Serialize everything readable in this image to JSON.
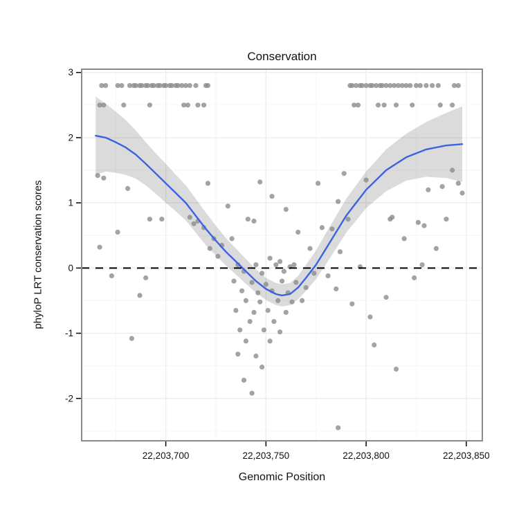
{
  "chart_data": {
    "type": "scatter",
    "title": "Conservation",
    "xlabel": "Genomic Position",
    "ylabel": "phyloP LRT conservation scores",
    "xlim": [
      22203658,
      22203858
    ],
    "ylim": [
      -2.65,
      3.05
    ],
    "x_ticks": [
      {
        "value": 22203700,
        "label": "22,203,700"
      },
      {
        "value": 22203750,
        "label": "22,203,750"
      },
      {
        "value": 22203800,
        "label": "22,203,800"
      },
      {
        "value": 22203850,
        "label": "22,203,850"
      }
    ],
    "x_minor": [
      22203675,
      22203725,
      22203775,
      22203825
    ],
    "y_ticks": [
      {
        "value": -2,
        "label": "-2"
      },
      {
        "value": -1,
        "label": "-1"
      },
      {
        "value": 0,
        "label": "0"
      },
      {
        "value": 1,
        "label": "1"
      },
      {
        "value": 2,
        "label": "2"
      },
      {
        "value": 3,
        "label": "3"
      }
    ],
    "y_minor": [
      -2.5,
      -1.5,
      -0.5,
      0.5,
      1.5,
      2.5
    ],
    "hline": 0,
    "legend": "none",
    "grid": "on",
    "points": [
      [
        22203668,
        2.8
      ],
      [
        22203670,
        2.8
      ],
      [
        22203676,
        2.8
      ],
      [
        22203678,
        2.8
      ],
      [
        22203682,
        2.8
      ],
      [
        22203684,
        2.8
      ],
      [
        22203685,
        2.8
      ],
      [
        22203687,
        2.8
      ],
      [
        22203688,
        2.8
      ],
      [
        22203690,
        2.8
      ],
      [
        22203691,
        2.8
      ],
      [
        22203693,
        2.8
      ],
      [
        22203694,
        2.8
      ],
      [
        22203696,
        2.8
      ],
      [
        22203697,
        2.8
      ],
      [
        22203699,
        2.8
      ],
      [
        22203700,
        2.8
      ],
      [
        22203702,
        2.8
      ],
      [
        22203703,
        2.8
      ],
      [
        22203705,
        2.8
      ],
      [
        22203706,
        2.8
      ],
      [
        22203708,
        2.8
      ],
      [
        22203710,
        2.8
      ],
      [
        22203712,
        2.8
      ],
      [
        22203715,
        2.8
      ],
      [
        22203720,
        2.8
      ],
      [
        22203721,
        2.8
      ],
      [
        22203792,
        2.8
      ],
      [
        22203793,
        2.8
      ],
      [
        22203795,
        2.8
      ],
      [
        22203797,
        2.8
      ],
      [
        22203798,
        2.8
      ],
      [
        22203800,
        2.8
      ],
      [
        22203802,
        2.8
      ],
      [
        22203803,
        2.8
      ],
      [
        22203805,
        2.8
      ],
      [
        22203807,
        2.8
      ],
      [
        22203808,
        2.8
      ],
      [
        22203810,
        2.8
      ],
      [
        22203812,
        2.8
      ],
      [
        22203814,
        2.8
      ],
      [
        22203816,
        2.8
      ],
      [
        22203818,
        2.8
      ],
      [
        22203820,
        2.8
      ],
      [
        22203822,
        2.8
      ],
      [
        22203825,
        2.8
      ],
      [
        22203827,
        2.8
      ],
      [
        22203830,
        2.8
      ],
      [
        22203833,
        2.8
      ],
      [
        22203836,
        2.8
      ],
      [
        22203844,
        2.8
      ],
      [
        22203846,
        2.8
      ],
      [
        22203667,
        2.5
      ],
      [
        22203669,
        2.5
      ],
      [
        22203679,
        2.5
      ],
      [
        22203692,
        2.5
      ],
      [
        22203709,
        2.5
      ],
      [
        22203711,
        2.5
      ],
      [
        22203716,
        2.5
      ],
      [
        22203719,
        2.5
      ],
      [
        22203794,
        2.5
      ],
      [
        22203796,
        2.5
      ],
      [
        22203806,
        2.5
      ],
      [
        22203809,
        2.5
      ],
      [
        22203815,
        2.5
      ],
      [
        22203823,
        2.5
      ],
      [
        22203837,
        2.5
      ],
      [
        22203843,
        2.5
      ],
      [
        22203666,
        1.42
      ],
      [
        22203669,
        1.38
      ],
      [
        22203681,
        1.22
      ],
      [
        22203667,
        0.32
      ],
      [
        22203676,
        0.55
      ],
      [
        22203692,
        0.75
      ],
      [
        22203698,
        0.75
      ],
      [
        22203712,
        0.78
      ],
      [
        22203716,
        0.72
      ],
      [
        22203673,
        -0.12
      ],
      [
        22203690,
        -0.15
      ],
      [
        22203687,
        -0.42
      ],
      [
        22203683,
        -1.08
      ],
      [
        22203714,
        0.68
      ],
      [
        22203719,
        0.62
      ],
      [
        22203721,
        1.3
      ],
      [
        22203722,
        0.3
      ],
      [
        22203724,
        0.45
      ],
      [
        22203726,
        0.18
      ],
      [
        22203728,
        0.35
      ],
      [
        22203731,
        0.95
      ],
      [
        22203733,
        0.45
      ],
      [
        22203734,
        -0.2
      ],
      [
        22203735,
        -0.65
      ],
      [
        22203736,
        0.05
      ],
      [
        22203736,
        -1.32
      ],
      [
        22203737,
        -0.95
      ],
      [
        22203738,
        -0.35
      ],
      [
        22203739,
        -0.05
      ],
      [
        22203739,
        -1.72
      ],
      [
        22203740,
        -0.5
      ],
      [
        22203740,
        -1.12
      ],
      [
        22203741,
        0.75
      ],
      [
        22203742,
        -0.82
      ],
      [
        22203743,
        -0.22
      ],
      [
        22203743,
        -1.92
      ],
      [
        22203744,
        0.72
      ],
      [
        22203744,
        -0.68
      ],
      [
        22203745,
        0.05
      ],
      [
        22203745,
        -1.35
      ],
      [
        22203746,
        -0.38
      ],
      [
        22203747,
        1.32
      ],
      [
        22203747,
        -0.52
      ],
      [
        22203748,
        -0.08
      ],
      [
        22203748,
        -1.52
      ],
      [
        22203749,
        -0.95
      ],
      [
        22203750,
        -0.25
      ],
      [
        22203751,
        -0.65
      ],
      [
        22203752,
        0.15
      ],
      [
        22203752,
        -1.12
      ],
      [
        22203753,
        1.1
      ],
      [
        22203753,
        -0.35
      ],
      [
        22203754,
        -0.82
      ],
      [
        22203755,
        0.05
      ],
      [
        22203756,
        -0.5
      ],
      [
        22203757,
        0.1
      ],
      [
        22203757,
        -0.98
      ],
      [
        22203758,
        -0.2
      ],
      [
        22203759,
        -0.05
      ],
      [
        22203760,
        0.9
      ],
      [
        22203760,
        -0.68
      ],
      [
        22203761,
        -0.38
      ],
      [
        22203762,
        0.02
      ],
      [
        22203763,
        -0.52
      ],
      [
        22203764,
        0.05
      ],
      [
        22203765,
        -0.22
      ],
      [
        22203766,
        0.55
      ],
      [
        22203768,
        -0.5
      ],
      [
        22203770,
        -0.3
      ],
      [
        22203772,
        0.3
      ],
      [
        22203774,
        -0.08
      ],
      [
        22203776,
        1.3
      ],
      [
        22203778,
        0.62
      ],
      [
        22203781,
        -0.12
      ],
      [
        22203783,
        0.6
      ],
      [
        22203785,
        -0.32
      ],
      [
        22203786,
        -2.45
      ],
      [
        22203786,
        1.02
      ],
      [
        22203787,
        0.25
      ],
      [
        22203789,
        1.45
      ],
      [
        22203791,
        0.75
      ],
      [
        22203793,
        -0.55
      ],
      [
        22203797,
        0.02
      ],
      [
        22203800,
        1.35
      ],
      [
        22203802,
        -0.75
      ],
      [
        22203804,
        -1.18
      ],
      [
        22203810,
        -0.45
      ],
      [
        22203812,
        0.75
      ],
      [
        22203813,
        0.78
      ],
      [
        22203815,
        -1.55
      ],
      [
        22203819,
        0.45
      ],
      [
        22203824,
        -0.15
      ],
      [
        22203826,
        0.7
      ],
      [
        22203828,
        0.05
      ],
      [
        22203829,
        0.65
      ],
      [
        22203831,
        1.2
      ],
      [
        22203835,
        0.3
      ],
      [
        22203838,
        1.25
      ],
      [
        22203840,
        0.75
      ],
      [
        22203843,
        1.5
      ],
      [
        22203846,
        1.3
      ],
      [
        22203848,
        1.15
      ]
    ],
    "smooth": {
      "x": [
        22203665,
        22203670,
        22203675,
        22203680,
        22203685,
        22203690,
        22203695,
        22203700,
        22203705,
        22203710,
        22203715,
        22203720,
        22203725,
        22203730,
        22203735,
        22203740,
        22203745,
        22203750,
        22203755,
        22203758,
        22203762,
        22203766,
        22203770,
        22203775,
        22203780,
        22203785,
        22203790,
        22203795,
        22203800,
        22203810,
        22203820,
        22203830,
        22203840,
        22203848
      ],
      "y": [
        2.03,
        2.0,
        1.93,
        1.85,
        1.74,
        1.6,
        1.45,
        1.3,
        1.15,
        1.0,
        0.8,
        0.6,
        0.42,
        0.25,
        0.1,
        -0.05,
        -0.2,
        -0.32,
        -0.4,
        -0.42,
        -0.4,
        -0.3,
        -0.15,
        0.05,
        0.3,
        0.55,
        0.8,
        1.0,
        1.2,
        1.5,
        1.7,
        1.82,
        1.88,
        1.9
      ],
      "half_width": [
        0.6,
        0.52,
        0.47,
        0.42,
        0.37,
        0.33,
        0.31,
        0.3,
        0.28,
        0.27,
        0.26,
        0.25,
        0.23,
        0.21,
        0.2,
        0.19,
        0.18,
        0.17,
        0.17,
        0.17,
        0.17,
        0.18,
        0.2,
        0.22,
        0.24,
        0.25,
        0.26,
        0.27,
        0.28,
        0.32,
        0.36,
        0.42,
        0.5,
        0.58
      ]
    },
    "colors": {
      "point": "#8c8c8c",
      "line": "#3b62e2",
      "band": "#000000",
      "band_opacity": 0.14,
      "grid_major": "#ededed",
      "grid_minor": "#f6f6f6",
      "hline": "#000000",
      "border": "#8a8a8a",
      "tick": "#000000",
      "text": "#111111"
    }
  }
}
